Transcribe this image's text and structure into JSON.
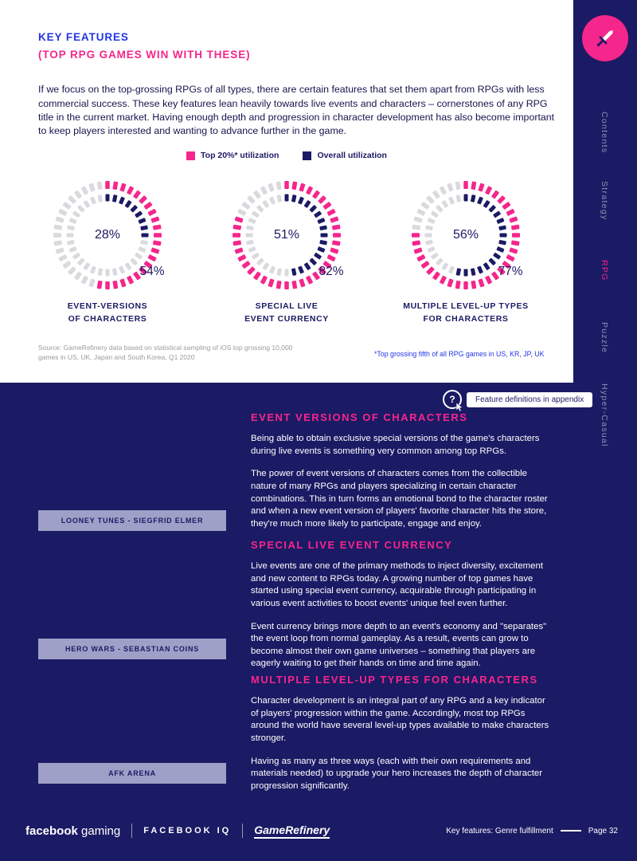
{
  "theme": {
    "navy": "#1b1a64",
    "pink": "#f5268c",
    "segment_gray": "#d9d9de",
    "heading_blue": "#2336e4",
    "caption_bar": "#9fa0c8"
  },
  "header": {
    "title_line1": "KEY FEATURES",
    "title_line2": "(TOP RPG GAMES WIN WITH THESE)",
    "intro": "If we focus on the top-grossing RPGs of all types, there are certain features that set them apart from RPGs with less commercial success. These key features lean heavily towards live events and characters – cornerstones of any RPG title in the current market. Having enough depth and progression in character development has also become important to keep players interested and wanting to advance further in the game."
  },
  "chart_data": {
    "type": "donut",
    "legend": [
      {
        "label": "Top 20%* utilization",
        "color": "#f5268c"
      },
      {
        "label": "Overall utilization",
        "color": "#1b1a64"
      }
    ],
    "charts": [
      {
        "label_line1": "EVENT-VERSIONS",
        "label_line2": "OF CHARACTERS",
        "overall_pct": 28,
        "top20_pct": 54,
        "center_label": "28%",
        "outer_label": "54%"
      },
      {
        "label_line1": "SPECIAL LIVE",
        "label_line2": "EVENT CURRENCY",
        "overall_pct": 51,
        "top20_pct": 82,
        "center_label": "51%",
        "outer_label": "82%"
      },
      {
        "label_line1": "MULTIPLE LEVEL-UP TYPES",
        "label_line2": "FOR CHARACTERS",
        "overall_pct": 56,
        "top20_pct": 77,
        "center_label": "56%",
        "outer_label": "77%"
      }
    ],
    "source": "Source: GameRefinery data based on statistical sampling of iOS top grossing 10,000 games in US, UK, Japan and South Korea, Q1 2020",
    "footnote": "*Top grossing fifth of all RPG games in US, KR, JP, UK"
  },
  "sidebar": {
    "items": [
      {
        "label": "Contents",
        "active": false
      },
      {
        "label": "Strategy",
        "active": false
      },
      {
        "label": "RPG",
        "active": true
      },
      {
        "label": "Puzzle",
        "active": false
      },
      {
        "label": "Hyper-Casual",
        "active": false
      }
    ]
  },
  "badge": {
    "label": "Feature definitions in appendix",
    "icon_glyph": "?"
  },
  "sections": [
    {
      "title": "EVENT VERSIONS OF CHARACTERS",
      "p1": "Being able to obtain exclusive special versions of the game's characters during live events is something very common among top RPGs.",
      "p2": "The power of event versions of characters comes from the collectible nature of many RPGs and players specializing in certain character combinations. This in turn forms an emotional bond to the character roster and when a new event version of players' favorite character hits the store, they're much more likely to participate, engage and enjoy.",
      "caption": "LOONEY TUNES - SIEGFRID ELMER"
    },
    {
      "title": "SPECIAL LIVE EVENT CURRENCY",
      "p1": "Live events are one of the primary methods to inject diversity, excitement and new content to RPGs today. A growing number of top games have started using special event currency, acquirable through participating in various event activities to boost events' unique feel even further.",
      "p2": "Event currency brings more depth to an event's economy and \"separates\" the event loop from normal gameplay. As a result, events can grow to become almost their own game universes – something that players are eagerly waiting to get their hands on time and time again.",
      "caption": "HERO WARS - SEBASTIAN COINS"
    },
    {
      "title": "MULTIPLE LEVEL-UP TYPES FOR CHARACTERS",
      "p1": "Character development is an integral part of any RPG and a key indicator of players' progression within the game. Accordingly, most top RPGs around the world have several level-up types available to make characters stronger.",
      "p2": "Having as many as three ways (each with their own requirements and materials needed) to upgrade your hero increases the depth of character progression significantly.",
      "caption": "AFK ARENA"
    }
  ],
  "footer": {
    "facebook": "facebook",
    "gaming": "gaming",
    "facebook_iq": "FACEBOOK IQ",
    "gamerefinery": "GameRefinery",
    "section_label": "Key features: Genre fulfillment",
    "page": "Page 32"
  }
}
